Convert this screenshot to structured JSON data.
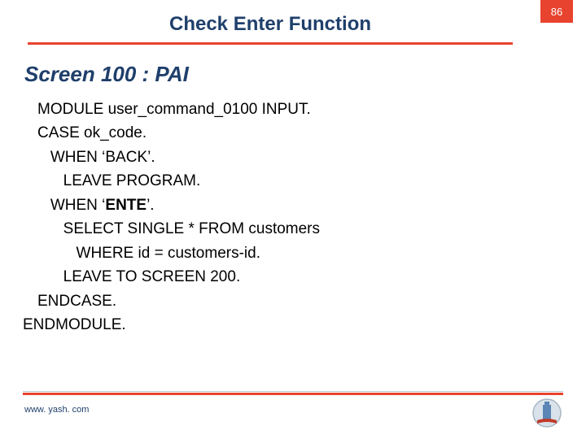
{
  "page_number": "86",
  "title": "Check Enter Function",
  "subtitle": "Screen 100 : PAI",
  "colors": {
    "accent_red": "#e8432e",
    "heading_blue": "#1f3f6b",
    "text": "#000000",
    "bg": "#ffffff",
    "divider_light": "#b9c7d3",
    "logo_outer": "#d9e2ea",
    "logo_ring": "#a7b7c4",
    "logo_tower": "#5a85b5",
    "logo_ribbon": "#c03a2a"
  },
  "code": {
    "lines": [
      {
        "indent": 0,
        "text": "MODULE user_command_0100 INPUT."
      },
      {
        "indent": 0,
        "text": "CASE ok_code."
      },
      {
        "indent": 1,
        "text": "WHEN ‘BACK’."
      },
      {
        "indent": 2,
        "text": "LEAVE PROGRAM."
      },
      {
        "indent": 1,
        "prefix": "WHEN ‘",
        "bold": "ENTE",
        "suffix": "’."
      },
      {
        "indent": 2,
        "text": "SELECT SINGLE * FROM customers"
      },
      {
        "indent": 3,
        "text": "WHERE id = customers-id."
      },
      {
        "indent": 2,
        "text": "LEAVE TO SCREEN 200."
      },
      {
        "indent": 0,
        "text": "ENDCASE."
      },
      {
        "indent": -1,
        "text": "ENDMODULE."
      }
    ]
  },
  "footer": {
    "url": "www. yash. com"
  }
}
